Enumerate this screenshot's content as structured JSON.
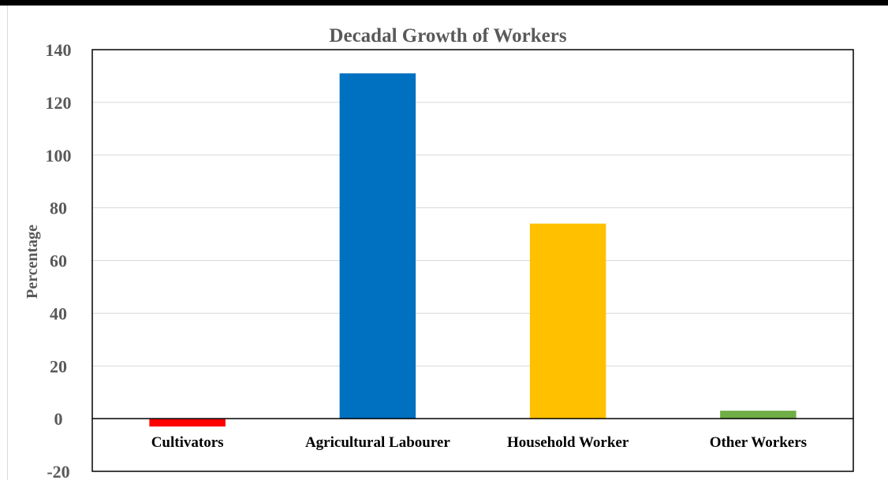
{
  "chart_data": {
    "type": "bar",
    "title": "Decadal Growth of Workers",
    "xlabel": "",
    "ylabel": "Percentage",
    "categories": [
      "Cultivators",
      "Agricultural Labourer",
      "Household Worker",
      "Other Workers"
    ],
    "values": [
      -3,
      131,
      74,
      3
    ],
    "colors": [
      "#ff0000",
      "#0070c0",
      "#ffc000",
      "#70ad47"
    ],
    "ylim": [
      -20,
      140
    ],
    "yticks": [
      -20,
      0,
      20,
      40,
      60,
      80,
      100,
      120,
      140
    ],
    "ytick_labels": [
      "-20",
      "0",
      "20",
      "40",
      "60",
      "80",
      "100",
      "120",
      "140"
    ],
    "grid": true,
    "legend": "none"
  }
}
